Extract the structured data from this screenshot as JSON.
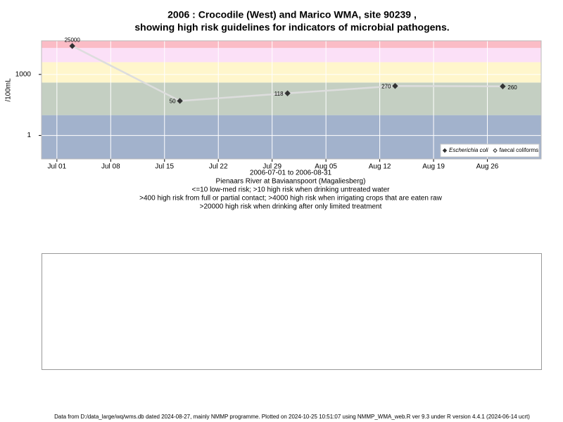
{
  "chart_data": {
    "type": "line",
    "title": "2006 : Crocodile (West) and Marico WMA, site 90239 ,",
    "subtitle": "showing high risk guidelines for indicators of microbial pathogens.",
    "y_label": "/100mL",
    "x_label": "2006-07-01 to 2006-08-31",
    "site": "Pienaars River at Baviaanspoort (Magaliesberg)",
    "notes": [
      "<=10 low-med risk; >10 high risk when drinking untreated water",
      ">400 high risk from full or partial contact; >4000 high risk when irrigating crops that are eaten raw",
      ">20000 high risk when drinking after only limited treatment"
    ],
    "footer": "Data from D:/data_large/wq/wms.db dated 2024-08-27, mainly NMMP programme. Plotted on 2024-10-25 10:51:07 using NMMP_WMA_web.R ver 9.3 under R version 4.4.1 (2024-06-14 ucrt)",
    "x": [
      "2006-07-03",
      "2006-07-17",
      "2006-07-31",
      "2006-08-14",
      "2006-08-28"
    ],
    "series": [
      {
        "name": "Escherichia coli",
        "color": "#333333",
        "line_color": "#dddddd",
        "values": [
          25000,
          50,
          118,
          270,
          260
        ]
      },
      {
        "name": "faecal coliforms",
        "color": "#333333",
        "values": [
          null,
          null,
          null,
          null,
          null
        ]
      }
    ],
    "xlim": [
      "2006-06-29",
      "2006-09-02"
    ],
    "xticks": [
      {
        "value": "2006-07-01",
        "label": "Jul 01"
      },
      {
        "value": "2006-07-08",
        "label": "Jul 08"
      },
      {
        "value": "2006-07-15",
        "label": "Jul 15"
      },
      {
        "value": "2006-07-22",
        "label": "Jul 22"
      },
      {
        "value": "2006-07-29",
        "label": "Jul 29"
      },
      {
        "value": "2006-08-05",
        "label": "Aug 05"
      },
      {
        "value": "2006-08-12",
        "label": "Aug 12"
      },
      {
        "value": "2006-08-19",
        "label": "Aug 19"
      },
      {
        "value": "2006-08-26",
        "label": "Aug 26"
      }
    ],
    "ylim": [
      0.07,
      45000
    ],
    "yticks": [
      1,
      1000
    ],
    "log_y": true,
    "grid": true,
    "band_breaks": [
      10,
      400,
      4000,
      20000
    ],
    "band_colors": [
      "#a2b2cc",
      "#c4cfc2",
      "#fff6cc",
      "#fbe0f7",
      "#fbbcc6"
    ],
    "legend": "bottom-right"
  }
}
